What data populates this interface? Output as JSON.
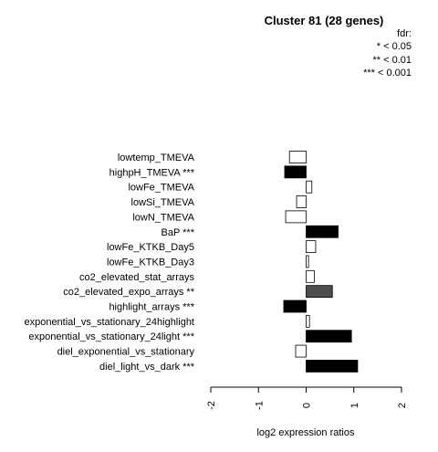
{
  "chart_data": {
    "type": "bar",
    "orientation": "horizontal",
    "title": "Cluster 81 (28 genes)",
    "xlabel": "log2 expression ratios",
    "xlim": [
      -2,
      2
    ],
    "xticks": [
      "-2",
      "-1",
      "0",
      "1",
      "2"
    ],
    "legend": {
      "title": "fdr:",
      "entries": [
        "* < 0.05",
        "** < 0.01",
        "*** < 0.001"
      ],
      "placement": "top-right"
    },
    "categories": [
      "lowtemp_TMEVA",
      "highpH_TMEVA ***",
      "lowFe_TMEVA",
      "lowSi_TMEVA",
      "lowN_TMEVA",
      "BaP ***",
      "lowFe_KTKB_Day5",
      "lowFe_KTKB_Day3",
      "co2_elevated_stat_arrays",
      "co2_elevated_expo_arrays **",
      "highlight_arrays ***",
      "exponential_vs_stationary_24highlight",
      "exponential_vs_stationary_24light ***",
      "diel_exponential_vs_stationary",
      "diel_light_vs_dark ***"
    ],
    "values": [
      -0.35,
      -0.45,
      0.12,
      -0.2,
      -0.43,
      0.67,
      0.2,
      0.05,
      0.17,
      0.55,
      -0.47,
      0.07,
      0.95,
      -0.22,
      1.08
    ],
    "significance": [
      "none",
      "***",
      "none",
      "none",
      "none",
      "***",
      "none",
      "none",
      "none",
      "**",
      "***",
      "none",
      "***",
      "none",
      "***"
    ],
    "fill_colors": {
      "none": "#ffffff",
      "*": "#bbbbbb",
      "**": "#4d4d4d",
      "***": "#000000"
    }
  }
}
